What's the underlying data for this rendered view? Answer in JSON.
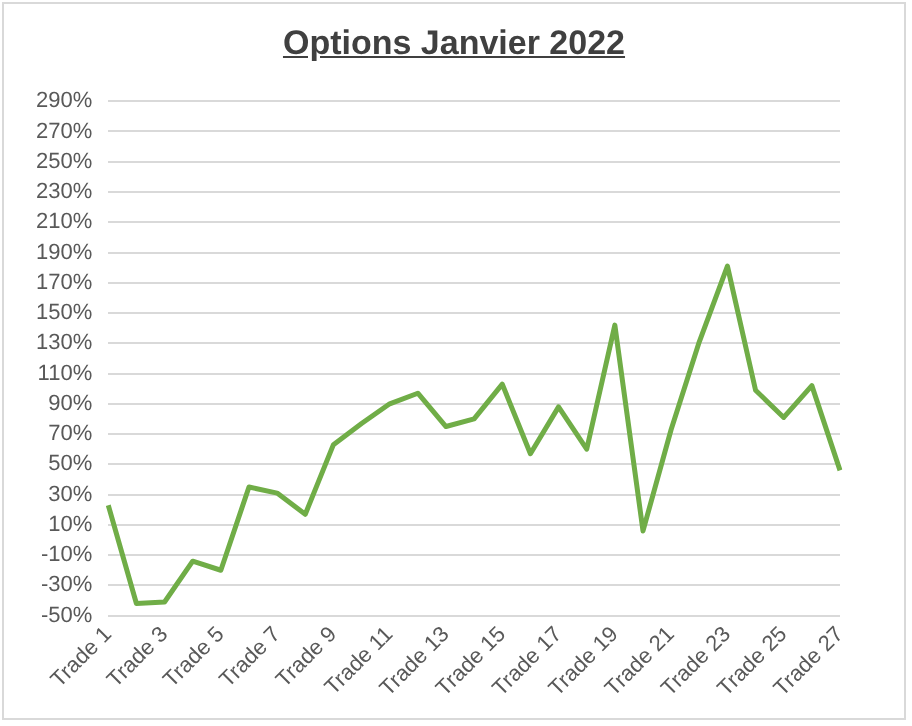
{
  "chart_data": {
    "type": "line",
    "title": "Options Janvier 2022",
    "categories": [
      "Trade 1",
      null,
      "Trade 3",
      null,
      "Trade 5",
      null,
      "Trade 7",
      null,
      "Trade 9",
      null,
      "Trade 11",
      null,
      "Trade 13",
      null,
      "Trade 15",
      null,
      "Trade 17",
      null,
      "Trade 19",
      null,
      "Trade 21",
      null,
      "Trade 23",
      null,
      "Trade 25",
      null,
      "Trade 27"
    ],
    "series": [
      {
        "color": "#70ad47",
        "values": [
          23,
          -42,
          -41,
          -14,
          -20,
          35,
          31,
          17,
          63,
          77,
          90,
          97,
          75,
          80,
          103,
          57,
          88,
          60,
          142,
          6,
          73,
          131,
          181,
          99,
          81,
          102,
          46
        ]
      }
    ],
    "ylim": [
      -50,
      290
    ],
    "yticks": [
      {
        "value": -50,
        "label": "-50%"
      },
      {
        "value": -30,
        "label": "-30%"
      },
      {
        "value": -10,
        "label": "-10%"
      },
      {
        "value": 10,
        "label": "10%"
      },
      {
        "value": 30,
        "label": "30%"
      },
      {
        "value": 50,
        "label": "50%"
      },
      {
        "value": 70,
        "label": "70%"
      },
      {
        "value": 90,
        "label": "90%"
      },
      {
        "value": 110,
        "label": "110%"
      },
      {
        "value": 130,
        "label": "130%"
      },
      {
        "value": 150,
        "label": "150%"
      },
      {
        "value": 170,
        "label": "170%"
      },
      {
        "value": 190,
        "label": "190%"
      },
      {
        "value": 210,
        "label": "210%"
      },
      {
        "value": 230,
        "label": "230%"
      },
      {
        "value": 250,
        "label": "250%"
      },
      {
        "value": 270,
        "label": "270%"
      },
      {
        "value": 290,
        "label": "290%"
      }
    ],
    "grid": "y",
    "legend": false,
    "marker": "none",
    "line_style": "solid"
  }
}
